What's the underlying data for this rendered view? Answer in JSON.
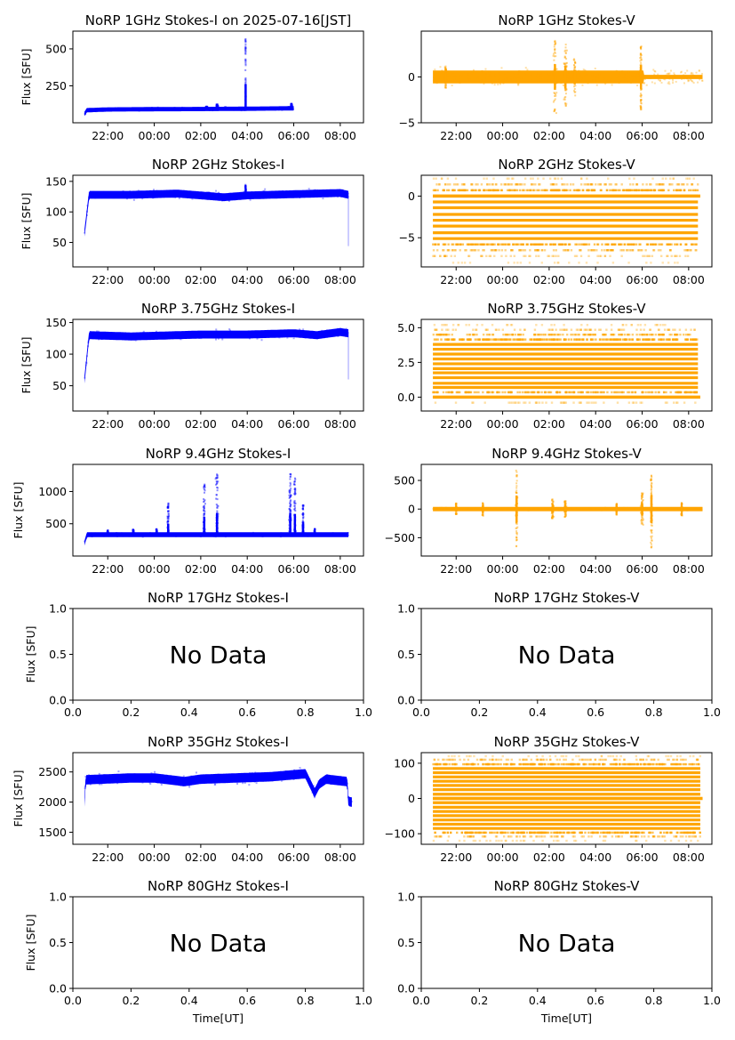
{
  "figure": {
    "xlabel_bottom": "Time[UT]",
    "ylabel": "Flux [SFU]",
    "colors": {
      "stokes_i": "#0000ff",
      "stokes_v": "#ffa500",
      "axis": "#000000"
    },
    "time_ticks": [
      "22:00",
      "00:00",
      "02:00",
      "04:00",
      "06:00",
      "08:00"
    ]
  },
  "chart_data": [
    {
      "id": "1ghz-i",
      "type": "scatter",
      "title": "NoRP 1GHz Stokes-I on 2025-07-16[JST]",
      "ylabel": "Flux [SFU]",
      "xlabel": "",
      "series_color": "#0000ff",
      "x_range_hours": [
        -3.5,
        9
      ],
      "ylim": [
        0,
        620
      ],
      "yticks": [
        250,
        500
      ],
      "xticklabels": [
        "22:00",
        "00:00",
        "02:00",
        "04:00",
        "06:00",
        "08:00"
      ],
      "xtick_hours": [
        -2,
        0,
        2,
        4,
        6,
        8
      ],
      "data_span_hours": [
        -3.0,
        6.0
      ],
      "baseline": [
        [
          -3.0,
          60
        ],
        [
          -2.9,
          85
        ],
        [
          -2.0,
          90
        ],
        [
          0,
          92
        ],
        [
          2.0,
          93
        ],
        [
          4.0,
          95
        ],
        [
          6.0,
          98
        ]
      ],
      "noise": 4,
      "bursts": [
        [
          2.25,
          110,
          0.08
        ],
        [
          2.7,
          125,
          0.08
        ],
        [
          3.05,
          105,
          0.06
        ],
        [
          3.93,
          570,
          0.02
        ],
        [
          5.9,
          130,
          0.05
        ]
      ],
      "no_data": false
    },
    {
      "id": "1ghz-v",
      "type": "scatter",
      "title": "NoRP 1GHz Stokes-V",
      "ylabel": "",
      "xlabel": "",
      "series_color": "#ffa500",
      "x_range_hours": [
        -3.5,
        9
      ],
      "ylim": [
        -5,
        5
      ],
      "yticks": [
        -5,
        0
      ],
      "xticklabels": [
        "22:00",
        "00:00",
        "02:00",
        "04:00",
        "06:00",
        "08:00"
      ],
      "xtick_hours": [
        -2,
        0,
        2,
        4,
        6,
        8
      ],
      "data_span_hours": [
        -3.0,
        8.6
      ],
      "baseline": [
        [
          -3.0,
          0
        ],
        [
          8.6,
          0
        ]
      ],
      "noise": 0.4,
      "bursts": [
        [
          -2.45,
          1.2,
          0.05
        ],
        [
          2.25,
          4.0,
          0.12
        ],
        [
          2.7,
          3.6,
          0.14
        ],
        [
          3.1,
          2.2,
          0.07
        ],
        [
          5.95,
          3.7,
          0.06
        ]
      ],
      "flat_after_hours": 6.05,
      "no_data": false
    },
    {
      "id": "2ghz-i",
      "type": "scatter",
      "title": "NoRP 2GHz Stokes-I",
      "ylabel": "Flux [SFU]",
      "xlabel": "",
      "series_color": "#0000ff",
      "x_range_hours": [
        -3.5,
        9
      ],
      "ylim": [
        10,
        160
      ],
      "yticks": [
        50,
        100,
        150
      ],
      "xticklabels": [
        "22:00",
        "00:00",
        "02:00",
        "04:00",
        "06:00",
        "08:00"
      ],
      "xtick_hours": [
        -2,
        0,
        2,
        4,
        6,
        8
      ],
      "data_span_hours": [
        -3.0,
        8.35
      ],
      "baseline": [
        [
          -3.0,
          66
        ],
        [
          -2.8,
          128
        ],
        [
          -1,
          128
        ],
        [
          1,
          130
        ],
        [
          3,
          124
        ],
        [
          4,
          127
        ],
        [
          6,
          129
        ],
        [
          8,
          131
        ],
        [
          8.35,
          128
        ]
      ],
      "noise": 3,
      "bursts": [
        [
          3.93,
          145,
          0.03
        ]
      ],
      "dropout": [
        8.35,
        44
      ],
      "no_data": false
    },
    {
      "id": "2ghz-v",
      "type": "scatter",
      "title": "NoRP 2GHz Stokes-V",
      "ylabel": "",
      "xlabel": "",
      "series_color": "#ffa500",
      "x_range_hours": [
        -3.5,
        9
      ],
      "ylim": [
        -8.5,
        2.5
      ],
      "yticks": [
        -5,
        0
      ],
      "xticklabels": [
        "22:00",
        "00:00",
        "02:00",
        "04:00",
        "06:00",
        "08:00"
      ],
      "xtick_hours": [
        -2,
        0,
        2,
        4,
        6,
        8
      ],
      "data_span_hours": [
        -3.0,
        8.4
      ],
      "quantized_levels": [
        2.1,
        1.4,
        0.7,
        0,
        -0.7,
        -1.4,
        -2.2,
        -2.9,
        -3.6,
        -4.4,
        -5.1,
        -5.8,
        -6.5,
        -7.2,
        -8.0
      ],
      "level_strength": [
        0.15,
        0.45,
        0.85,
        1,
        1,
        1,
        1,
        1,
        1,
        1,
        1,
        0.85,
        0.45,
        0.25,
        0.1
      ],
      "no_data": false
    },
    {
      "id": "3.75ghz-i",
      "type": "scatter",
      "title": "NoRP 3.75GHz Stokes-I",
      "ylabel": "Flux [SFU]",
      "xlabel": "",
      "series_color": "#0000ff",
      "x_range_hours": [
        -3.5,
        9
      ],
      "ylim": [
        10,
        155
      ],
      "yticks": [
        50,
        100,
        150
      ],
      "xticklabels": [
        "22:00",
        "00:00",
        "02:00",
        "04:00",
        "06:00",
        "08:00"
      ],
      "xtick_hours": [
        -2,
        0,
        2,
        4,
        6,
        8
      ],
      "data_span_hours": [
        -3.0,
        8.35
      ],
      "baseline": [
        [
          -3.0,
          60
        ],
        [
          -2.8,
          130
        ],
        [
          -1,
          128
        ],
        [
          0,
          129
        ],
        [
          2,
          131
        ],
        [
          4,
          131
        ],
        [
          6,
          133
        ],
        [
          7,
          130
        ],
        [
          8,
          135
        ],
        [
          8.35,
          133
        ]
      ],
      "noise": 3,
      "bursts": [],
      "dropout": [
        8.35,
        60
      ],
      "no_data": false
    },
    {
      "id": "3.75ghz-v",
      "type": "scatter",
      "title": "NoRP 3.75GHz Stokes-V",
      "ylabel": "",
      "xlabel": "",
      "series_color": "#ffa500",
      "x_range_hours": [
        -3.5,
        9
      ],
      "ylim": [
        -1.0,
        5.6
      ],
      "yticks": [
        0.0,
        2.5,
        5.0
      ],
      "xticklabels": [
        "22:00",
        "00:00",
        "02:00",
        "04:00",
        "06:00",
        "08:00"
      ],
      "xtick_hours": [
        -2,
        0,
        2,
        4,
        6,
        8
      ],
      "data_span_hours": [
        -3.0,
        8.4
      ],
      "quantized_levels": [
        -0.4,
        0.0,
        0.35,
        0.7,
        1.0,
        1.4,
        1.75,
        2.05,
        2.4,
        2.75,
        3.1,
        3.45,
        3.8,
        4.15,
        4.5,
        4.85,
        5.2
      ],
      "level_strength": [
        0.2,
        0.45,
        0.7,
        1,
        1,
        1,
        1,
        1,
        1,
        1,
        1,
        1,
        1,
        0.9,
        0.6,
        0.3,
        0.15
      ],
      "no_data": false
    },
    {
      "id": "9.4ghz-i",
      "type": "scatter",
      "title": "NoRP 9.4GHz Stokes-I",
      "ylabel": "Flux [SFU]",
      "xlabel": "",
      "series_color": "#0000ff",
      "x_range_hours": [
        -3.5,
        9
      ],
      "ylim": [
        0,
        1420
      ],
      "yticks": [
        500,
        1000
      ],
      "xticklabels": [
        "22:00",
        "00:00",
        "02:00",
        "04:00",
        "06:00",
        "08:00"
      ],
      "xtick_hours": [
        -2,
        0,
        2,
        4,
        6,
        8
      ],
      "data_span_hours": [
        -3.0,
        8.35
      ],
      "baseline": [
        [
          -3.0,
          200
        ],
        [
          -2.9,
          330
        ],
        [
          8.35,
          330
        ]
      ],
      "noise": 12,
      "bursts": [
        [
          -2.0,
          400,
          0.04
        ],
        [
          -0.9,
          410,
          0.05
        ],
        [
          0.1,
          420,
          0.04
        ],
        [
          0.6,
          820,
          0.06
        ],
        [
          2.15,
          1120,
          0.09
        ],
        [
          2.7,
          1290,
          0.1
        ],
        [
          5.85,
          1300,
          0.08
        ],
        [
          6.05,
          1250,
          0.06
        ],
        [
          6.4,
          800,
          0.05
        ],
        [
          6.9,
          420,
          0.03
        ]
      ],
      "no_data": false
    },
    {
      "id": "9.4ghz-v",
      "type": "scatter",
      "title": "NoRP 9.4GHz Stokes-V",
      "ylabel": "",
      "xlabel": "",
      "series_color": "#ffa500",
      "x_range_hours": [
        -3.5,
        9
      ],
      "ylim": [
        -820,
        780
      ],
      "yticks": [
        -500,
        0,
        500
      ],
      "xticklabels": [
        "22:00",
        "00:00",
        "02:00",
        "04:00",
        "06:00",
        "08:00"
      ],
      "xtick_hours": [
        -2,
        0,
        2,
        4,
        6,
        8
      ],
      "data_span_hours": [
        -3.0,
        8.6
      ],
      "baseline": [
        [
          -3.0,
          0
        ],
        [
          8.6,
          0
        ]
      ],
      "noise": 10,
      "bursts": [
        [
          -2.0,
          100,
          0.04
        ],
        [
          -0.85,
          120,
          0.05
        ],
        [
          0.6,
          680,
          0.07
        ],
        [
          2.15,
          170,
          0.08
        ],
        [
          2.7,
          150,
          0.09
        ],
        [
          4.9,
          100,
          0.03
        ],
        [
          6.0,
          280,
          0.1
        ],
        [
          6.4,
          700,
          0.06
        ],
        [
          7.7,
          120,
          0.03
        ]
      ],
      "no_data": false
    },
    {
      "id": "17ghz-i",
      "type": "scatter",
      "title": "NoRP 17GHz Stokes-I",
      "ylabel": "Flux [SFU]",
      "xlabel": "",
      "series_color": "#0000ff",
      "xlim": [
        0,
        1
      ],
      "ylim": [
        0,
        1
      ],
      "yticks": [
        0.0,
        0.5,
        1.0
      ],
      "xticks": [
        0.0,
        0.2,
        0.4,
        0.6,
        0.8,
        1.0
      ],
      "no_data": true,
      "no_data_label": "No Data"
    },
    {
      "id": "17ghz-v",
      "type": "scatter",
      "title": "NoRP 17GHz Stokes-V",
      "ylabel": "",
      "xlabel": "",
      "series_color": "#ffa500",
      "xlim": [
        0,
        1
      ],
      "ylim": [
        0,
        1
      ],
      "yticks": [
        0.0,
        0.5,
        1.0
      ],
      "xticks": [
        0.0,
        0.2,
        0.4,
        0.6,
        0.8,
        1.0
      ],
      "no_data": true,
      "no_data_label": "No Data"
    },
    {
      "id": "35ghz-i",
      "type": "scatter",
      "title": "NoRP 35GHz Stokes-I",
      "ylabel": "Flux [SFU]",
      "xlabel": "",
      "series_color": "#0000ff",
      "x_range_hours": [
        -3.5,
        9
      ],
      "ylim": [
        1300,
        2820
      ],
      "yticks": [
        1500,
        2000,
        2500
      ],
      "xticklabels": [
        "22:00",
        "00:00",
        "02:00",
        "04:00",
        "06:00",
        "08:00"
      ],
      "xtick_hours": [
        -2,
        0,
        2,
        4,
        6,
        8
      ],
      "data_span_hours": [
        -3.0,
        8.5
      ],
      "baseline": [
        [
          -3.0,
          2000
        ],
        [
          -2.95,
          2370
        ],
        [
          -1,
          2400
        ],
        [
          0,
          2400
        ],
        [
          1.3,
          2340
        ],
        [
          2,
          2380
        ],
        [
          3.5,
          2400
        ],
        [
          5,
          2420
        ],
        [
          6.5,
          2470
        ],
        [
          6.9,
          2150
        ],
        [
          7.1,
          2300
        ],
        [
          7.4,
          2380
        ],
        [
          8.3,
          2340
        ],
        [
          8.35,
          2010
        ],
        [
          8.5,
          2000
        ]
      ],
      "noise": 40,
      "bursts": [],
      "no_data": false
    },
    {
      "id": "35ghz-v",
      "type": "scatter",
      "title": "NoRP 35GHz Stokes-V",
      "ylabel": "",
      "xlabel": "",
      "series_color": "#ffa500",
      "x_range_hours": [
        -3.5,
        9
      ],
      "ylim": [
        -130,
        130
      ],
      "yticks": [
        -100,
        0,
        100
      ],
      "xticklabels": [
        "22:00",
        "00:00",
        "02:00",
        "04:00",
        "06:00",
        "08:00"
      ],
      "xtick_hours": [
        -2,
        0,
        2,
        4,
        6,
        8
      ],
      "data_span_hours": [
        -3.0,
        8.5
      ],
      "quantized_levels": [
        120,
        110,
        97,
        85,
        73,
        61,
        49,
        37,
        25,
        12,
        0,
        -12,
        -25,
        -37,
        -49,
        -61,
        -73,
        -85,
        -97,
        -108,
        -120
      ],
      "level_strength": [
        0.15,
        0.4,
        0.85,
        1,
        1,
        1,
        1,
        1,
        1,
        1,
        1,
        1,
        1,
        1,
        1,
        1,
        1,
        1,
        0.85,
        0.4,
        0.15
      ],
      "no_data": false
    },
    {
      "id": "80ghz-i",
      "type": "scatter",
      "title": "NoRP 80GHz Stokes-I",
      "ylabel": "Flux [SFU]",
      "xlabel": "Time[UT]",
      "series_color": "#0000ff",
      "xlim": [
        0,
        1
      ],
      "ylim": [
        0,
        1
      ],
      "yticks": [
        0.0,
        0.5,
        1.0
      ],
      "xticks": [
        0.0,
        0.2,
        0.4,
        0.6,
        0.8,
        1.0
      ],
      "no_data": true,
      "no_data_label": "No Data"
    },
    {
      "id": "80ghz-v",
      "type": "scatter",
      "title": "NoRP 80GHz Stokes-V",
      "ylabel": "",
      "xlabel": "Time[UT]",
      "series_color": "#ffa500",
      "xlim": [
        0,
        1
      ],
      "ylim": [
        0,
        1
      ],
      "yticks": [
        0.0,
        0.5,
        1.0
      ],
      "xticks": [
        0.0,
        0.2,
        0.4,
        0.6,
        0.8,
        1.0
      ],
      "no_data": true,
      "no_data_label": "No Data"
    }
  ]
}
